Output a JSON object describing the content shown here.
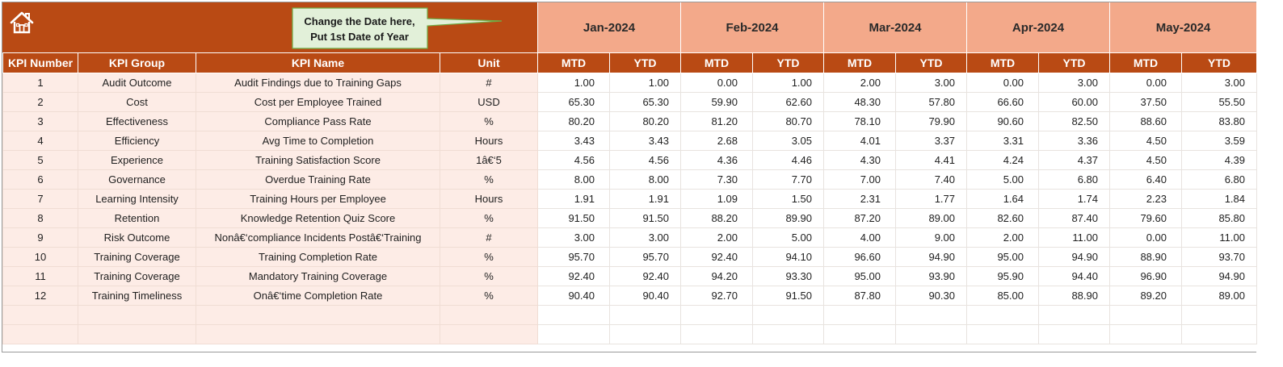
{
  "callout": {
    "line1": "Change the Date here,",
    "line2": "Put 1st Date of Year"
  },
  "colors": {
    "header_dark": "#b94a14",
    "header_light": "#f3a98a",
    "info_fill": "#fdece6",
    "callout_fill": "#e2f0d9",
    "callout_border": "#70ad47"
  },
  "months": [
    "Jan-2024",
    "Feb-2024",
    "Mar-2024",
    "Apr-2024",
    "May-2024"
  ],
  "columns": {
    "kpi_number": "KPI Number",
    "kpi_group": "KPI Group",
    "kpi_name": "KPI Name",
    "unit": "Unit",
    "mtd": "MTD",
    "ytd": "YTD"
  },
  "rows": [
    {
      "num": "1",
      "group": "Audit Outcome",
      "name": "Audit Findings due to Training Gaps",
      "unit": "#",
      "values": [
        "1.00",
        "1.00",
        "0.00",
        "1.00",
        "2.00",
        "3.00",
        "0.00",
        "3.00",
        "0.00",
        "3.00"
      ]
    },
    {
      "num": "2",
      "group": "Cost",
      "name": "Cost per Employee Trained",
      "unit": "USD",
      "values": [
        "65.30",
        "65.30",
        "59.90",
        "62.60",
        "48.30",
        "57.80",
        "66.60",
        "60.00",
        "37.50",
        "55.50"
      ]
    },
    {
      "num": "3",
      "group": "Effectiveness",
      "name": "Compliance Pass Rate",
      "unit": "%",
      "values": [
        "80.20",
        "80.20",
        "81.20",
        "80.70",
        "78.10",
        "79.90",
        "90.60",
        "82.50",
        "88.60",
        "83.80"
      ]
    },
    {
      "num": "4",
      "group": "Efficiency",
      "name": "Avg Time to Completion",
      "unit": "Hours",
      "values": [
        "3.43",
        "3.43",
        "2.68",
        "3.05",
        "4.01",
        "3.37",
        "3.31",
        "3.36",
        "4.50",
        "3.59"
      ]
    },
    {
      "num": "5",
      "group": "Experience",
      "name": "Training Satisfaction Score",
      "unit": "1â€‘5",
      "values": [
        "4.56",
        "4.56",
        "4.36",
        "4.46",
        "4.30",
        "4.41",
        "4.24",
        "4.37",
        "4.50",
        "4.39"
      ]
    },
    {
      "num": "6",
      "group": "Governance",
      "name": "Overdue Training Rate",
      "unit": "%",
      "values": [
        "8.00",
        "8.00",
        "7.30",
        "7.70",
        "7.00",
        "7.40",
        "5.00",
        "6.80",
        "6.40",
        "6.80"
      ]
    },
    {
      "num": "7",
      "group": "Learning Intensity",
      "name": "Training Hours per Employee",
      "unit": "Hours",
      "values": [
        "1.91",
        "1.91",
        "1.09",
        "1.50",
        "2.31",
        "1.77",
        "1.64",
        "1.74",
        "2.23",
        "1.84"
      ]
    },
    {
      "num": "8",
      "group": "Retention",
      "name": "Knowledge Retention Quiz Score",
      "unit": "%",
      "values": [
        "91.50",
        "91.50",
        "88.20",
        "89.90",
        "87.20",
        "89.00",
        "82.60",
        "87.40",
        "79.60",
        "85.80"
      ]
    },
    {
      "num": "9",
      "group": "Risk Outcome",
      "name": "Nonâ€‘compliance Incidents Postâ€‘Training",
      "unit": "#",
      "values": [
        "3.00",
        "3.00",
        "2.00",
        "5.00",
        "4.00",
        "9.00",
        "2.00",
        "11.00",
        "0.00",
        "11.00"
      ]
    },
    {
      "num": "10",
      "group": "Training Coverage",
      "name": "Training Completion Rate",
      "unit": "%",
      "values": [
        "95.70",
        "95.70",
        "92.40",
        "94.10",
        "96.60",
        "94.90",
        "95.00",
        "94.90",
        "88.90",
        "93.70"
      ]
    },
    {
      "num": "11",
      "group": "Training Coverage",
      "name": "Mandatory Training Coverage",
      "unit": "%",
      "values": [
        "92.40",
        "92.40",
        "94.20",
        "93.30",
        "95.00",
        "93.90",
        "95.90",
        "94.40",
        "96.90",
        "94.90"
      ]
    },
    {
      "num": "12",
      "group": "Training Timeliness",
      "name": "Onâ€‘time Completion Rate",
      "unit": "%",
      "values": [
        "90.40",
        "90.40",
        "92.70",
        "91.50",
        "87.80",
        "90.30",
        "85.00",
        "88.90",
        "89.20",
        "89.00"
      ]
    }
  ]
}
